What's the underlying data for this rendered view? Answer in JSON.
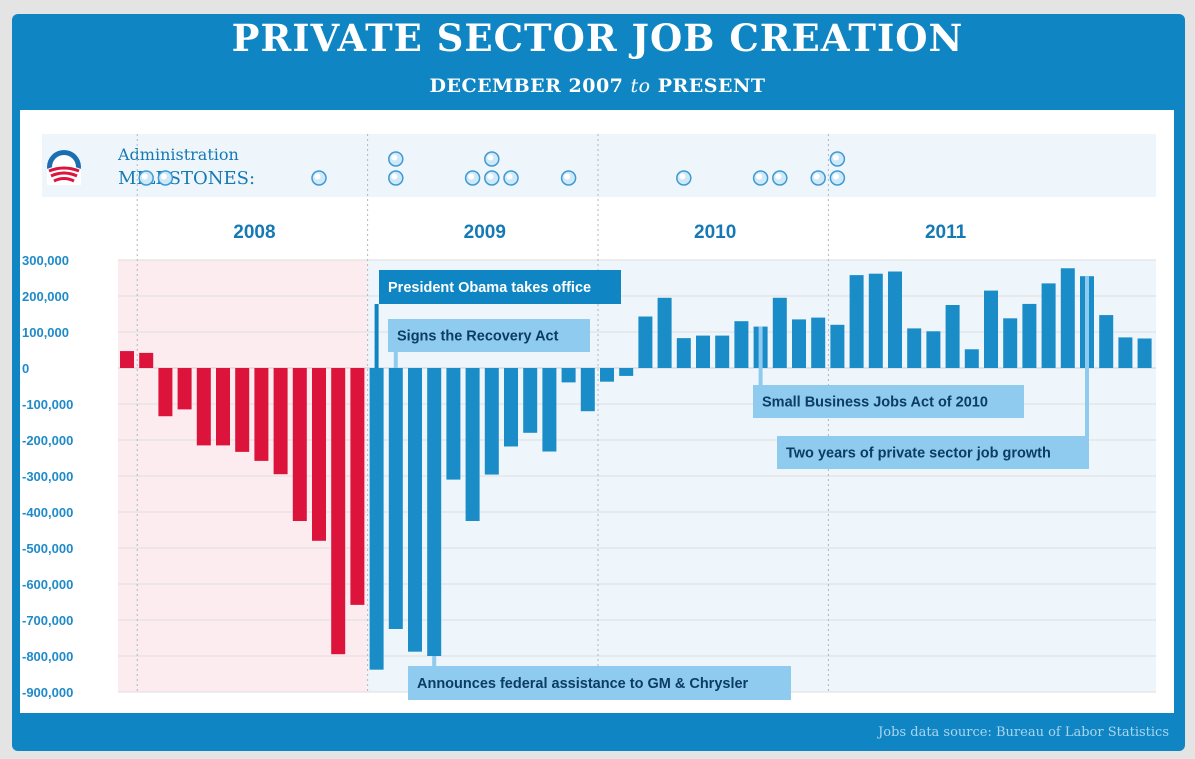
{
  "header": {
    "title": "PRIVATE SECTOR JOB CREATION",
    "subtitle_start": "DECEMBER 2007",
    "subtitle_mid": "to",
    "subtitle_end": "PRESENT"
  },
  "milestones": {
    "label_line1": "Administration",
    "label_line2": "MILESTONES:",
    "logo_icon": "campaign-logo-icon",
    "markers": [
      {
        "month_index": 1,
        "count": 1
      },
      {
        "month_index": 2,
        "count": 1
      },
      {
        "month_index": 10,
        "count": 1
      },
      {
        "month_index": 14,
        "count": 2
      },
      {
        "month_index": 18,
        "count": 1
      },
      {
        "month_index": 19,
        "count": 2
      },
      {
        "month_index": 20,
        "count": 1
      },
      {
        "month_index": 23,
        "count": 1
      },
      {
        "month_index": 29,
        "count": 1
      },
      {
        "month_index": 33,
        "count": 1
      },
      {
        "month_index": 34,
        "count": 1
      },
      {
        "month_index": 36,
        "count": 1
      },
      {
        "month_index": 37,
        "count": 2
      }
    ]
  },
  "footer": {
    "source": "Jobs data source: Bureau of Labor Statistics"
  },
  "colors": {
    "frame": "#0f85c3",
    "before_bar": "#dc143c",
    "after_bar": "#1a8cc8",
    "before_region": "#fdecef",
    "after_region": "#eef6fb",
    "annotation_dark": "#0f85c3",
    "annotation_light": "#8ecbee"
  },
  "chart_data": {
    "type": "bar",
    "x": [
      "2007-12",
      "2008-01",
      "2008-02",
      "2008-03",
      "2008-04",
      "2008-05",
      "2008-06",
      "2008-07",
      "2008-08",
      "2008-09",
      "2008-10",
      "2008-11",
      "2008-12",
      "2009-01",
      "2009-02",
      "2009-03",
      "2009-04",
      "2009-05",
      "2009-06",
      "2009-07",
      "2009-08",
      "2009-09",
      "2009-10",
      "2009-11",
      "2009-12",
      "2010-01",
      "2010-02",
      "2010-03",
      "2010-04",
      "2010-05",
      "2010-06",
      "2010-07",
      "2010-08",
      "2010-09",
      "2010-10",
      "2010-11",
      "2010-12",
      "2011-01",
      "2011-02",
      "2011-03",
      "2011-04",
      "2011-05",
      "2011-06",
      "2011-07",
      "2011-08",
      "2011-09",
      "2011-10",
      "2011-11",
      "2011-12",
      "2012-01",
      "2012-02",
      "2012-03",
      "2012-04",
      "2012-05"
    ],
    "x_labels": [
      "2008",
      "2009",
      "2010",
      "2011"
    ],
    "series": [
      {
        "values": [
          47000,
          42000,
          -134000,
          -115000,
          -215000,
          -215000,
          -233000,
          -258000,
          -295000,
          -425000,
          -480000,
          -795000,
          -658000,
          -838000,
          -725000,
          -788000,
          -800000,
          -310000,
          -425000,
          -296000,
          -218000,
          -180000,
          -232000,
          -40000,
          -120000,
          -38000,
          -22000,
          143000,
          195000,
          83000,
          90000,
          90000,
          130000,
          115000,
          195000,
          135000,
          140000,
          120000,
          258000,
          262000,
          268000,
          110000,
          102000,
          175000,
          52000,
          215000,
          138000,
          178000,
          235000,
          277000,
          255000,
          147000,
          85000,
          82000
        ]
      }
    ],
    "ylim": [
      -900000,
      300000
    ],
    "yticks": [
      "300,000",
      "200,000",
      "100,000",
      "0",
      "-100,000",
      "-200,000",
      "-300,000",
      "-400,000",
      "-500,000",
      "-600,000",
      "-700,000",
      "-800,000",
      "-900,000"
    ],
    "grid": true,
    "annotations": [
      {
        "label": "President Obama takes office",
        "month_index": 13,
        "style": "dark"
      },
      {
        "label": "Signs the Recovery Act",
        "month_index": 14,
        "style": "light"
      },
      {
        "label": "Announces federal assistance to GM & Chrysler",
        "month_index": 16,
        "style": "light"
      },
      {
        "label": "Small Business Jobs Act of 2010",
        "month_index": 33,
        "style": "light"
      },
      {
        "label": "Two years of private sector job growth",
        "month_index": 50,
        "style": "light"
      }
    ]
  }
}
